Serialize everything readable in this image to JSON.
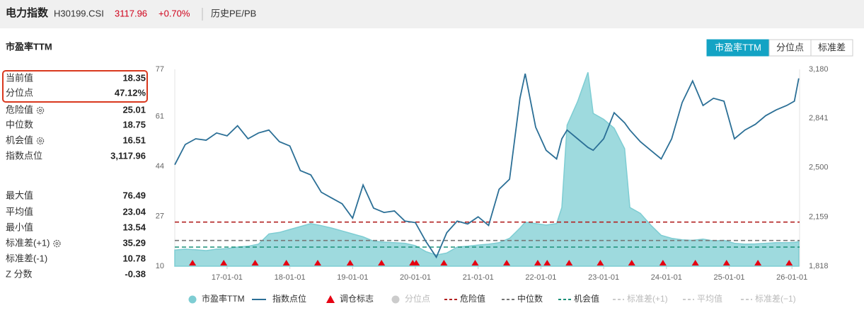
{
  "header": {
    "title": "电力指数",
    "code": "H30199.CSI",
    "price": "3117.96",
    "change": "+0.70%",
    "subtitle": "历史PE/PB"
  },
  "panel_title": "市盈率TTM",
  "buttons": [
    "市盈率TTM",
    "分位点",
    "标准差"
  ],
  "stats": [
    {
      "label": "当前值",
      "value": "18.35"
    },
    {
      "label": "分位点",
      "value": "47.12%"
    },
    {
      "label": "危险值",
      "value": "25.01",
      "gear": true
    },
    {
      "label": "中位数",
      "value": "18.75"
    },
    {
      "label": "机会值",
      "value": "16.51",
      "gear": true
    },
    {
      "label": "指数点位",
      "value": "3,117.96"
    },
    {
      "label": "最大值",
      "value": "76.49"
    },
    {
      "label": "平均值",
      "value": "23.04"
    },
    {
      "label": "最小值",
      "value": "13.54"
    },
    {
      "label": "标准差(+1)",
      "value": "35.29",
      "gear": true
    },
    {
      "label": "标准差(-1)",
      "value": "10.78"
    },
    {
      "label": "Z 分数",
      "value": "-0.38"
    }
  ],
  "chart_data": {
    "type": "line",
    "x": [
      "16-03-01",
      "16-05-01",
      "16-07-01",
      "16-09-01",
      "16-11-01",
      "17-01-01",
      "17-03-01",
      "17-05-01",
      "17-07-01",
      "17-09-01",
      "17-11-01",
      "18-01-01",
      "18-03-01",
      "18-05-01",
      "18-07-01",
      "18-09-01",
      "18-11-01",
      "19-01-01",
      "19-03-01",
      "19-05-01",
      "19-07-01",
      "19-09-01",
      "19-11-01",
      "20-01-01",
      "20-03-01",
      "20-05-01",
      "20-07-01",
      "20-09-01",
      "20-11-01",
      "21-01-01",
      "21-03-01",
      "21-05-01",
      "21-07-01",
      "21-09-01",
      "21-10-01",
      "21-12-01",
      "22-02-01",
      "22-04-01",
      "22-05-01",
      "22-06-01",
      "22-08-01",
      "22-10-01",
      "22-11-01",
      "23-01-01",
      "23-03-01",
      "23-05-01",
      "23-06-01",
      "23-08-01",
      "23-10-01",
      "23-12-01",
      "24-02-01",
      "24-04-01",
      "24-06-01",
      "24-08-01",
      "24-10-01",
      "24-12-01",
      "25-02-01",
      "25-04-01",
      "25-06-01",
      "25-08-01",
      "25-10-01",
      "25-12-01",
      "26-01-15",
      "26-02-10"
    ],
    "xlim": [
      "16-03-01",
      "26-02-15"
    ],
    "xticks": [
      "17-01-01",
      "18-01-01",
      "19-01-01",
      "20-01-01",
      "21-01-01",
      "22-01-01",
      "23-01-01",
      "24-01-01",
      "25-01-01",
      "26-01-01"
    ],
    "ylim": [
      10,
      77
    ],
    "yticks": [
      10,
      27,
      44,
      61,
      77
    ],
    "y2lim": [
      1818,
      3180
    ],
    "y2ticks": [
      {
        "value": 1818,
        "label": "1,818"
      },
      {
        "value": 2159,
        "label": "2,159"
      },
      {
        "value": 2500,
        "label": "2,500"
      },
      {
        "value": 2841,
        "label": "2,841"
      },
      {
        "value": 3180,
        "label": "3,180"
      }
    ],
    "series": [
      {
        "name": "市盈率TTM",
        "color": "#7ecdd3",
        "style": "area",
        "values": [
          15.5,
          15.8,
          15.6,
          15.3,
          15.8,
          16.0,
          16.5,
          16.8,
          17.5,
          21.0,
          21.5,
          22.5,
          23.5,
          24.5,
          23.8,
          23.0,
          22.0,
          21.0,
          20.0,
          18.5,
          18.2,
          18.0,
          17.8,
          17.0,
          15.0,
          13.8,
          14.5,
          16.5,
          16.8,
          17.2,
          17.5,
          18.0,
          19.5,
          23.0,
          25.0,
          24.5,
          24.0,
          24.5,
          30.0,
          58.0,
          66.0,
          76.0,
          62.0,
          60.0,
          57.0,
          50.0,
          30.0,
          28.0,
          24.0,
          20.5,
          19.5,
          19.0,
          18.8,
          19.2,
          18.6,
          18.8,
          17.8,
          17.5,
          17.6,
          17.8,
          18.0,
          18.0,
          18.1,
          18.35
        ]
      },
      {
        "name": "指数点位",
        "color": "#2b6f96",
        "style": "line",
        "axis": "y2",
        "values": [
          2520,
          2660,
          2700,
          2690,
          2740,
          2720,
          2790,
          2700,
          2740,
          2760,
          2680,
          2650,
          2480,
          2450,
          2330,
          2290,
          2250,
          2150,
          2380,
          2220,
          2190,
          2200,
          2130,
          2120,
          1990,
          1880,
          2050,
          2130,
          2110,
          2160,
          2100,
          2350,
          2420,
          2980,
          3150,
          2780,
          2620,
          2560,
          2700,
          2760,
          2700,
          2640,
          2620,
          2700,
          2880,
          2810,
          2760,
          2680,
          2620,
          2560,
          2700,
          2950,
          3100,
          2930,
          2980,
          2960,
          2700,
          2760,
          2800,
          2860,
          2900,
          2930,
          2960,
          3117.96
        ]
      }
    ],
    "markers": {
      "name": "调仓标志",
      "color": "#e60012",
      "x": [
        "16-06-13",
        "16-12-12",
        "17-06-12",
        "17-12-11",
        "18-06-11",
        "18-12-17",
        "19-06-17",
        "19-12-16",
        "20-01-06",
        "20-06-15",
        "20-12-14",
        "21-06-15",
        "21-12-13",
        "22-02-07",
        "22-06-13",
        "22-12-12",
        "23-06-12",
        "23-12-11",
        "24-06-17",
        "24-12-16",
        "25-06-16",
        "25-12-15"
      ]
    },
    "reference_lines": [
      {
        "name": "危险值",
        "value": 25.01,
        "color": "#b22222"
      },
      {
        "name": "中位数",
        "value": 18.75,
        "color": "#777777"
      },
      {
        "name": "机会值",
        "value": 16.51,
        "color": "#1a9078"
      }
    ],
    "hidden_legend": [
      {
        "name": "分位点"
      },
      {
        "name": "标准差(+1)"
      },
      {
        "name": "平均值"
      },
      {
        "name": "标准差(−1)"
      }
    ]
  }
}
